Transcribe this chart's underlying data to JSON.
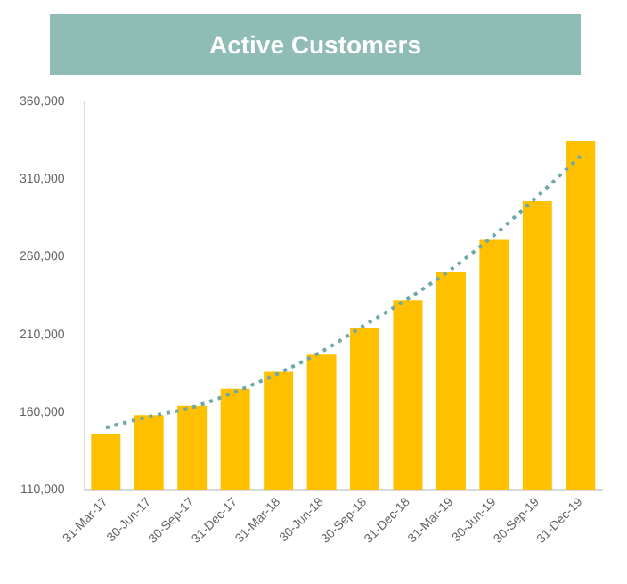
{
  "chart_data": {
    "type": "bar",
    "title": "Active Customers",
    "categories": [
      "31-Mar-17",
      "30-Jun-17",
      "30-Sep-17",
      "31-Dec-17",
      "31-Mar-18",
      "30-Jun-18",
      "30-Sep-18",
      "31-Dec-18",
      "31-Mar-19",
      "30-Jun-19",
      "30-Sep-19",
      "31-Dec-19"
    ],
    "series": [
      {
        "color": "#ffc000",
        "values": [
          146000,
          158000,
          164000,
          175000,
          186000,
          197000,
          214000,
          232000,
          250000,
          271000,
          296000,
          335000
        ]
      },
      {
        "type": "line",
        "color": "#6fa8a8",
        "line_style": "dotted",
        "marker": "none",
        "values": [
          150000,
          157000,
          163000,
          173000,
          185000,
          199000,
          216000,
          233000,
          252000,
          274000,
          299000,
          325000
        ]
      }
    ],
    "ylim": [
      110000,
      360000
    ],
    "yticks": [
      {
        "value": 110000,
        "label": "110,000"
      },
      {
        "value": 160000,
        "label": "160,000"
      },
      {
        "value": 210000,
        "label": "210,000"
      },
      {
        "value": 260000,
        "label": "260,000"
      },
      {
        "value": 310000,
        "label": "310,000"
      },
      {
        "value": 360000,
        "label": "360,000"
      }
    ],
    "grid": false,
    "legend": false
  }
}
